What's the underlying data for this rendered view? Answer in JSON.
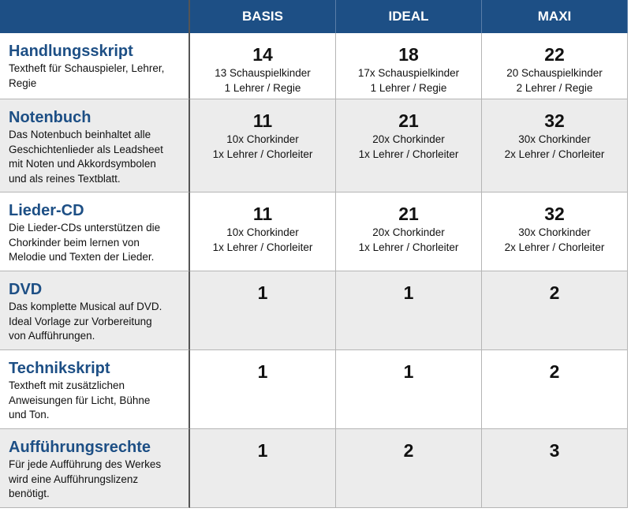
{
  "table": {
    "columns": [
      "BASIS",
      "IDEAL",
      "MAXI"
    ],
    "rows": [
      {
        "title": "Handlungsskript",
        "description": [
          "Textheft für Schauspieler, Lehrer,",
          "Regie"
        ],
        "cells": [
          {
            "number": 14,
            "lines": [
              "13 Schauspielkinder",
              "1 Lehrer / Regie"
            ]
          },
          {
            "number": 18,
            "lines": [
              "17x Schauspielkinder",
              "1 Lehrer / Regie"
            ]
          },
          {
            "number": 22,
            "lines": [
              "20 Schauspielkinder",
              "2 Lehrer / Regie"
            ]
          }
        ]
      },
      {
        "title": "Notenbuch",
        "description": [
          "Das Notenbuch beinhaltet alle",
          "Geschichtenlieder als Leadsheet",
          "mit Noten und Akkordsymbolen",
          "und als reines Textblatt."
        ],
        "cells": [
          {
            "number": 11,
            "lines": [
              "10x Chorkinder",
              "1x Lehrer / Chorleiter"
            ]
          },
          {
            "number": 21,
            "lines": [
              "20x Chorkinder",
              "1x Lehrer / Chorleiter"
            ]
          },
          {
            "number": 32,
            "lines": [
              "30x Chorkinder",
              "2x Lehrer / Chorleiter"
            ]
          }
        ]
      },
      {
        "title": "Lieder-CD",
        "description": [
          "Die Lieder-CDs unterstützen die",
          "Chorkinder beim lernen von",
          "Melodie und Texten der Lieder."
        ],
        "cells": [
          {
            "number": 11,
            "lines": [
              "10x Chorkinder",
              "1x Lehrer / Chorleiter"
            ]
          },
          {
            "number": 21,
            "lines": [
              "20x Chorkinder",
              "1x Lehrer / Chorleiter"
            ]
          },
          {
            "number": 32,
            "lines": [
              "30x Chorkinder",
              "2x Lehrer / Chorleiter"
            ]
          }
        ]
      },
      {
        "title": "DVD",
        "description": [
          "Das komplette Musical auf DVD.",
          "Ideal Vorlage zur Vorbereitung",
          "von Aufführungen."
        ],
        "cells": [
          {
            "number": 1
          },
          {
            "number": 1
          },
          {
            "number": 2
          }
        ]
      },
      {
        "title": "Technikskript",
        "description": [
          "Textheft mit zusätzlichen",
          "Anweisungen für Licht, Bühne",
          "und Ton."
        ],
        "cells": [
          {
            "number": 1
          },
          {
            "number": 1
          },
          {
            "number": 2
          }
        ]
      },
      {
        "title": "Aufführungsrechte",
        "description": [
          "Für jede Aufführung des Werkes",
          "wird eine Aufführungslizenz",
          "benötigt."
        ],
        "cells": [
          {
            "number": 1
          },
          {
            "number": 2
          },
          {
            "number": 3
          }
        ]
      }
    ]
  }
}
